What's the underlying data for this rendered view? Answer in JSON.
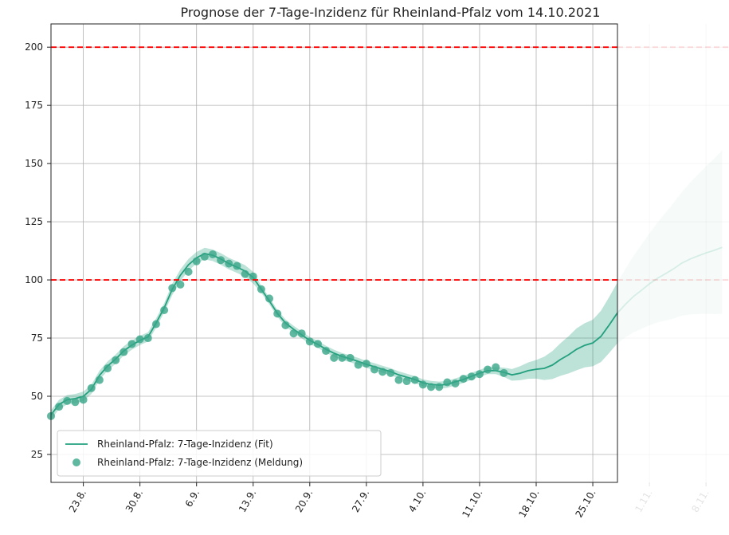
{
  "chart_data": {
    "type": "line",
    "title": "Prognose der 7-Tage-Inzidenz für Rheinland-Pfalz vom 14.10.2021",
    "categories": [
      null,
      null,
      null,
      null,
      "23.8.",
      null,
      null,
      null,
      null,
      null,
      null,
      "30.8.",
      null,
      null,
      null,
      null,
      null,
      null,
      "6.9.",
      null,
      null,
      null,
      null,
      null,
      null,
      "13.9.",
      null,
      null,
      null,
      null,
      null,
      null,
      "20.9.",
      null,
      null,
      null,
      null,
      null,
      null,
      "27.9.",
      null,
      null,
      null,
      null,
      null,
      null,
      "4.10.",
      null,
      null,
      null,
      null,
      null,
      null,
      "11.10.",
      null,
      null,
      null,
      null,
      null,
      null,
      "18.10.",
      null,
      null,
      null,
      null,
      null,
      null,
      "25.10.",
      null,
      null,
      null,
      null,
      null,
      null,
      "1.11.",
      null,
      null,
      null,
      null,
      null,
      null,
      "8.11.",
      null,
      null
    ],
    "series": [
      {
        "name": "Rheinland-Pfalz: 7-Tage-Inzidenz (Fit)",
        "color": "#23a07e",
        "values": [
          42.0,
          46.5,
          48.5,
          49.0,
          50.0,
          53.0,
          59.0,
          63.0,
          66.0,
          69.5,
          72.0,
          74.0,
          75.5,
          81.5,
          88.0,
          96.0,
          102.0,
          106.5,
          109.5,
          111.3,
          110.6,
          109.0,
          107.0,
          105.5,
          103.8,
          101.0,
          96.0,
          91.0,
          85.6,
          81.5,
          78.8,
          76.4,
          74.0,
          72.3,
          70.2,
          68.5,
          67.1,
          66.1,
          65.0,
          63.7,
          62.7,
          61.6,
          60.6,
          59.2,
          58.2,
          57.2,
          55.8,
          55.1,
          54.8,
          55.1,
          56.2,
          57.2,
          58.6,
          59.9,
          61.0,
          61.0,
          60.3,
          59.2,
          59.9,
          61.0,
          61.6,
          62.0,
          63.4,
          65.8,
          67.8,
          70.2,
          71.9,
          72.9,
          75.7,
          80.5,
          85.6,
          89.4,
          92.8,
          95.5,
          98.3,
          100.7,
          102.7,
          104.8,
          107.2,
          108.9,
          110.3,
          111.6,
          112.7,
          114.0
        ],
        "upper": [
          44.0,
          48.5,
          50.5,
          51.0,
          52.0,
          55.0,
          61.0,
          65.0,
          68.0,
          71.5,
          74.0,
          76.0,
          77.5,
          83.5,
          90.0,
          98.5,
          104.5,
          109.0,
          112.0,
          113.8,
          113.1,
          111.5,
          109.5,
          108.0,
          106.3,
          103.5,
          97.5,
          92.5,
          87.1,
          83.0,
          80.3,
          77.9,
          75.5,
          73.8,
          71.7,
          70.0,
          68.6,
          67.6,
          66.5,
          65.2,
          64.2,
          63.1,
          62.1,
          60.7,
          59.7,
          58.7,
          57.3,
          56.6,
          56.3,
          56.6,
          57.7,
          58.7,
          60.1,
          61.4,
          62.5,
          62.5,
          62.3,
          61.7,
          62.9,
          64.5,
          65.6,
          67.0,
          69.4,
          72.8,
          75.8,
          79.2,
          81.4,
          82.9,
          86.7,
          92.5,
          98.6,
          104.6,
          110.2,
          115.1,
          120.1,
          124.7,
          128.9,
          133.2,
          137.8,
          141.7,
          145.3,
          148.8,
          152.1,
          155.6
        ],
        "lower": [
          40.0,
          44.5,
          46.5,
          47.0,
          48.0,
          51.0,
          57.0,
          61.0,
          64.0,
          67.5,
          70.0,
          72.0,
          73.5,
          79.5,
          86.0,
          93.5,
          99.5,
          104.0,
          107.0,
          108.8,
          108.1,
          106.5,
          104.5,
          103.0,
          101.3,
          98.5,
          94.5,
          89.5,
          84.1,
          80.0,
          77.3,
          74.9,
          72.5,
          70.8,
          68.7,
          67.0,
          65.6,
          64.6,
          63.5,
          62.2,
          61.2,
          60.1,
          59.1,
          57.7,
          56.7,
          55.7,
          54.3,
          53.6,
          53.3,
          53.6,
          54.7,
          55.7,
          57.1,
          58.4,
          59.5,
          59.5,
          58.3,
          56.7,
          56.9,
          57.5,
          57.6,
          57.0,
          57.4,
          58.8,
          59.8,
          61.2,
          62.4,
          62.9,
          64.7,
          68.5,
          72.6,
          75.2,
          77.4,
          78.9,
          80.5,
          81.7,
          82.5,
          83.4,
          84.6,
          85.1,
          85.3,
          85.4,
          85.3,
          85.4
        ]
      },
      {
        "name": "Rheinland-Pfalz: 7-Tage-Inzidenz (Meldung)",
        "color": "#3aa68a",
        "marker": "circle",
        "values": [
          41.5,
          45.5,
          48.0,
          47.5,
          48.5,
          53.5,
          57.0,
          62.0,
          65.5,
          69.0,
          72.5,
          74.5,
          75.0,
          81.0,
          87.0,
          96.5,
          98.0,
          103.5,
          108.0,
          110.0,
          111.0,
          108.5,
          107.0,
          106.0,
          102.5,
          101.5,
          96.0,
          92.0,
          85.5,
          80.5,
          77.0,
          77.0,
          73.5,
          72.5,
          69.5,
          66.5,
          66.5,
          66.5,
          63.5,
          64.0,
          61.5,
          60.5,
          60.0,
          57.0,
          56.5,
          57.0,
          55.0,
          54.0,
          54.0,
          56.0,
          55.5,
          57.5,
          58.5,
          59.5,
          61.5,
          62.5,
          60.0,
          null,
          null,
          null,
          null,
          null,
          null,
          null,
          null,
          null,
          null,
          null,
          null,
          null,
          null,
          null,
          null,
          null,
          null,
          null,
          null,
          null,
          null,
          null,
          null,
          null,
          null,
          null
        ]
      }
    ],
    "ylim": [
      13,
      210
    ],
    "yticks": [
      25,
      50,
      75,
      100,
      125,
      150,
      175,
      200
    ],
    "reference_lines": {
      "values": [
        100,
        200
      ],
      "color": "#ff0000"
    },
    "grid": true,
    "legend": "lower left"
  }
}
